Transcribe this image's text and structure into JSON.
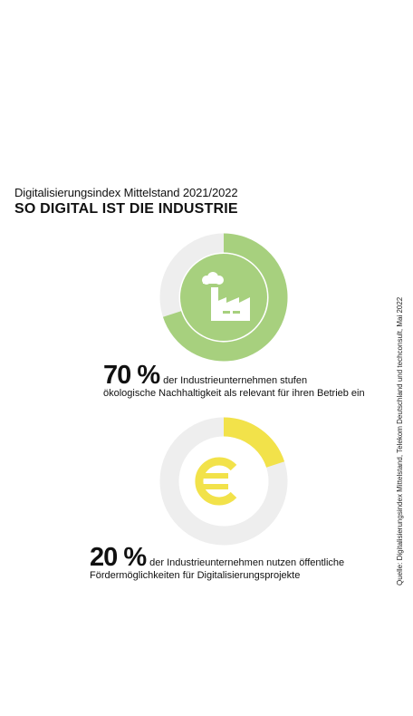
{
  "header": {
    "subtitle": "Digitalisierungsindex Mittelstand 2021/2022",
    "title": "SO DIGITAL IST DIE INDUSTRIE"
  },
  "chart_data": [
    {
      "type": "pie",
      "donut": true,
      "values": [
        70,
        30
      ],
      "value_label": "70 %",
      "text_line1": "der Industrieunternehmen stufen",
      "text_line2": "ökologische Nachhaltigkeit als relevant für ihren Betrieb ein",
      "icon": "factory-icon",
      "colors": [
        "#a7d07e",
        "#eeeeee"
      ]
    },
    {
      "type": "pie",
      "donut": true,
      "values": [
        20,
        80
      ],
      "value_label": "20 %",
      "text_line1": "der Industrieunternehmen nutzen öffentliche",
      "text_line2": "Fördermöglichkeiten für Digitalisierungsprojekte",
      "icon": "euro-icon",
      "colors": [
        "#f2e24a",
        "#eeeeee"
      ]
    }
  ],
  "source": "Quelle: Digitalisierungsindex Mittelstand, Telekom Deutschland und techconsult, Mai 2022"
}
